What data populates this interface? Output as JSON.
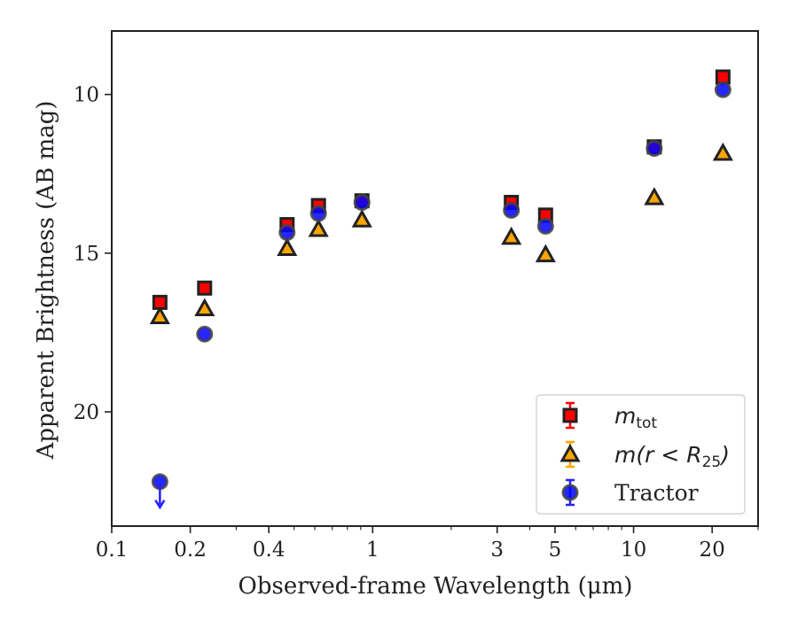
{
  "chart_data": {
    "type": "scatter",
    "xlabel": "Observed-frame Wavelength (μm)",
    "ylabel": "Apparent Brightness (AB mag)",
    "x_scale": "log",
    "xlim": [
      0.1,
      30
    ],
    "ylim": [
      23.6,
      8.0
    ],
    "y_inverted": true,
    "grid": false,
    "legend_position": "lower-right",
    "x_ticks": [
      {
        "value": 0.1,
        "label": "0.1"
      },
      {
        "value": 0.2,
        "label": "0.2"
      },
      {
        "value": 0.4,
        "label": "0.4"
      },
      {
        "value": 1,
        "label": "1"
      },
      {
        "value": 3,
        "label": "3"
      },
      {
        "value": 5,
        "label": "5"
      },
      {
        "value": 10,
        "label": "10"
      },
      {
        "value": 20,
        "label": "20"
      }
    ],
    "y_ticks": [
      {
        "value": 10,
        "label": "10"
      },
      {
        "value": 15,
        "label": "15"
      },
      {
        "value": 20,
        "label": "20"
      }
    ],
    "series": [
      {
        "name": "m_tot",
        "legend": {
          "base": "m",
          "sub": "tot"
        },
        "marker": "square",
        "color": "#ff0000",
        "edge": "#222222",
        "points": [
          {
            "x": 0.153,
            "y": 16.55
          },
          {
            "x": 0.227,
            "y": 16.1
          },
          {
            "x": 0.47,
            "y": 14.1
          },
          {
            "x": 0.62,
            "y": 13.5
          },
          {
            "x": 0.91,
            "y": 13.35
          },
          {
            "x": 3.4,
            "y": 13.4
          },
          {
            "x": 4.6,
            "y": 13.8
          },
          {
            "x": 12.0,
            "y": 11.65
          },
          {
            "x": 22.0,
            "y": 9.45
          }
        ]
      },
      {
        "name": "m(r < R25)",
        "legend": {
          "text": "m(r < R",
          "sub": "25",
          "close": ")"
        },
        "marker": "triangle",
        "color": "#ffa500",
        "edge": "#222222",
        "points": [
          {
            "x": 0.153,
            "y": 17.0
          },
          {
            "x": 0.227,
            "y": 16.75
          },
          {
            "x": 0.47,
            "y": 14.85
          },
          {
            "x": 0.62,
            "y": 14.25
          },
          {
            "x": 0.91,
            "y": 13.95
          },
          {
            "x": 3.4,
            "y": 14.5
          },
          {
            "x": 4.6,
            "y": 15.05
          },
          {
            "x": 12.0,
            "y": 13.25
          },
          {
            "x": 22.0,
            "y": 11.85
          }
        ]
      },
      {
        "name": "Tractor",
        "legend": {
          "text": "Tractor"
        },
        "marker": "circle",
        "color": "#0000ff",
        "edge": "#444444",
        "points": [
          {
            "x": 0.153,
            "y": 22.2,
            "upper_limit": true
          },
          {
            "x": 0.227,
            "y": 17.55
          },
          {
            "x": 0.47,
            "y": 14.35
          },
          {
            "x": 0.62,
            "y": 13.75
          },
          {
            "x": 0.91,
            "y": 13.4
          },
          {
            "x": 3.4,
            "y": 13.65
          },
          {
            "x": 4.6,
            "y": 14.15
          },
          {
            "x": 12.0,
            "y": 11.7
          },
          {
            "x": 22.0,
            "y": 9.85
          }
        ]
      }
    ]
  }
}
